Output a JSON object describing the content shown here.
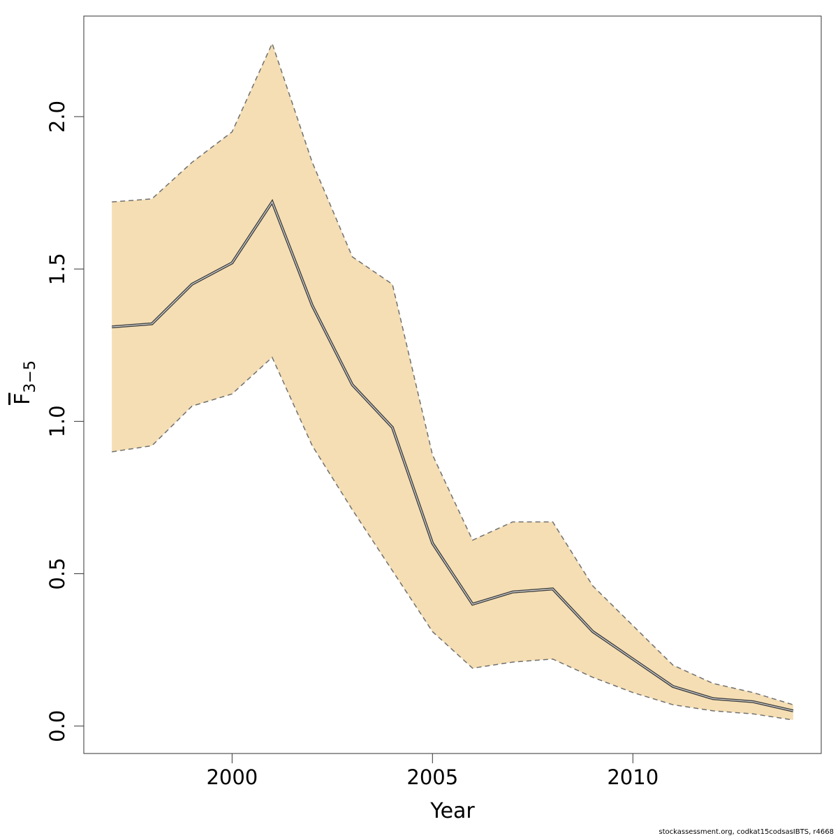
{
  "chart_data": {
    "type": "line",
    "title": "",
    "xlabel": "Year",
    "ylabel": "F",
    "ylabel_subscript": "3−5",
    "xlim": [
      1996.3,
      2014.7
    ],
    "ylim": [
      -0.09,
      2.33
    ],
    "x_ticks": [
      2000,
      2005,
      2010
    ],
    "x_tick_labels": [
      "2000",
      "2005",
      "2010"
    ],
    "y_ticks": [
      0.0,
      0.5,
      1.0,
      1.5,
      2.0
    ],
    "y_tick_labels": [
      "0.0",
      "0.5",
      "1.0",
      "1.5",
      "2.0"
    ],
    "grid": false,
    "colors": {
      "band": "#f5deb3",
      "line": "#404040",
      "bound": "#707070"
    },
    "x": [
      1997,
      1998,
      1999,
      2000,
      2001,
      2002,
      2003,
      2004,
      2005,
      2006,
      2007,
      2008,
      2009,
      2010,
      2011,
      2012,
      2013,
      2014
    ],
    "series": [
      {
        "role": "estimate",
        "values": [
          1.31,
          1.32,
          1.45,
          1.52,
          1.72,
          1.38,
          1.12,
          0.98,
          0.6,
          0.4,
          0.44,
          0.45,
          0.31,
          0.22,
          0.13,
          0.09,
          0.08,
          0.05
        ]
      },
      {
        "role": "upper",
        "values": [
          1.72,
          1.73,
          1.85,
          1.95,
          2.24,
          1.85,
          1.54,
          1.45,
          0.89,
          0.61,
          0.67,
          0.67,
          0.46,
          0.33,
          0.2,
          0.14,
          0.11,
          0.07
        ]
      },
      {
        "role": "lower",
        "values": [
          0.9,
          0.92,
          1.05,
          1.09,
          1.21,
          0.92,
          0.71,
          0.51,
          0.31,
          0.19,
          0.21,
          0.22,
          0.16,
          0.11,
          0.07,
          0.05,
          0.04,
          0.02
        ]
      }
    ]
  },
  "footer": {
    "text": "stockassessment.org, codkat15codsasIBTS, r4668"
  }
}
